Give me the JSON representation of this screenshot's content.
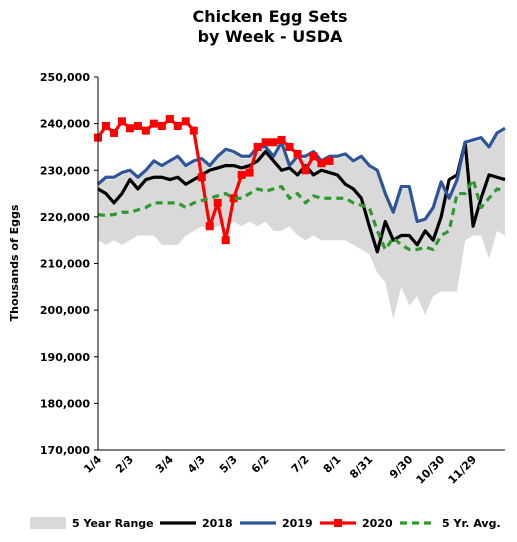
{
  "chart_data": {
    "type": "line",
    "title": "Chicken Egg Sets",
    "subtitle": "by Week - USDA",
    "y_label": "Thousands of Eggs",
    "categories": [
      "1/4",
      null,
      null,
      null,
      "2/3",
      null,
      null,
      null,
      null,
      "3/4",
      null,
      null,
      null,
      "4/3",
      null,
      null,
      null,
      "5/3",
      null,
      null,
      null,
      "6/2",
      null,
      null,
      null,
      null,
      "7/2",
      null,
      null,
      null,
      "8/1",
      null,
      null,
      null,
      "8/31",
      null,
      null,
      null,
      null,
      "9/30",
      null,
      null,
      null,
      "10/30",
      null,
      null,
      null,
      "11/29",
      null,
      null,
      null,
      null
    ],
    "ylim": [
      170000,
      250000
    ],
    "yticks": [
      {
        "value": 170000,
        "label": "170,000"
      },
      {
        "value": 180000,
        "label": "180,000"
      },
      {
        "value": 190000,
        "label": "190,000"
      },
      {
        "value": 200000,
        "label": "200,000"
      },
      {
        "value": 210000,
        "label": "210,000"
      },
      {
        "value": 220000,
        "label": "220,000"
      },
      {
        "value": 230000,
        "label": "230,000"
      },
      {
        "value": 240000,
        "label": "240,000"
      },
      {
        "value": 250000,
        "label": "250,000"
      }
    ],
    "series": [
      {
        "name": "5 Year Range",
        "kind": "range",
        "color": "#d9d9d9",
        "low": [
          215000,
          214000,
          215000,
          214000,
          215000,
          216000,
          216000,
          216000,
          214000,
          214000,
          214000,
          216000,
          217000,
          218000,
          217000,
          218000,
          218000,
          219000,
          218000,
          219000,
          218000,
          219000,
          217000,
          217000,
          218000,
          216000,
          215000,
          216000,
          215000,
          215000,
          215000,
          215000,
          214000,
          213000,
          212000,
          208000,
          206000,
          198000,
          205000,
          201000,
          203000,
          199000,
          203000,
          204000,
          204000,
          204000,
          215000,
          216000,
          216000,
          211000,
          217000,
          216000
        ],
        "high": [
          226500,
          228000,
          228000,
          229000,
          229500,
          228000,
          229500,
          231500,
          230500,
          231500,
          232500,
          230500,
          231500,
          232000,
          230500,
          232500,
          234000,
          233500,
          232500,
          232500,
          234500,
          234500,
          232500,
          235500,
          230500,
          232500,
          232500,
          233500,
          231500,
          232500,
          232500,
          233000,
          231500,
          232500,
          230500,
          229500,
          224500,
          220500,
          226000,
          226000,
          218500,
          219000,
          221500,
          227000,
          223500,
          227500,
          235500,
          236000,
          236500,
          234500,
          237500,
          238500
        ]
      },
      {
        "name": "2018",
        "color": "#000000",
        "dash": false,
        "markers": false,
        "values": [
          226000,
          225000,
          223000,
          225000,
          228000,
          226000,
          228000,
          228500,
          228500,
          228000,
          228500,
          227000,
          228000,
          229000,
          230000,
          230500,
          231000,
          231000,
          230500,
          231000,
          232000,
          234000,
          232000,
          230000,
          230500,
          229000,
          231000,
          229000,
          230000,
          229500,
          229000,
          227000,
          226000,
          224000,
          218000,
          212500,
          219000,
          215000,
          216000,
          216000,
          214000,
          217000,
          215000,
          220000,
          228000,
          229000,
          236000,
          218000,
          224000,
          229000,
          228500,
          228000
        ]
      },
      {
        "name": "2019",
        "color": "#2e5597",
        "dash": false,
        "markers": false,
        "values": [
          227000,
          228500,
          228500,
          229500,
          230000,
          228500,
          230000,
          232000,
          231000,
          232000,
          233000,
          231000,
          232000,
          232500,
          231000,
          233000,
          234500,
          234000,
          233000,
          233000,
          235000,
          235000,
          233000,
          236000,
          231000,
          233000,
          233000,
          234000,
          232000,
          233000,
          233000,
          233500,
          232000,
          233000,
          231000,
          230000,
          225000,
          221000,
          226500,
          226500,
          219000,
          219500,
          222000,
          227500,
          224000,
          228000,
          236000,
          236500,
          237000,
          235000,
          238000,
          239000
        ]
      },
      {
        "name": "2020",
        "color": "#ff0000",
        "dash": false,
        "markers": true,
        "values": [
          237000,
          239500,
          238000,
          240500,
          239000,
          239500,
          238500,
          240000,
          239500,
          241000,
          239500,
          240500,
          238500,
          228500,
          218000,
          223000,
          215000,
          224000,
          229000,
          229500,
          235000,
          236000,
          236000,
          236500,
          235000,
          233500,
          230000,
          233000,
          231500,
          232000,
          null,
          null,
          null,
          null,
          null,
          null,
          null,
          null,
          null,
          null,
          null,
          null,
          null,
          null,
          null,
          null,
          null,
          null,
          null,
          null,
          null,
          null
        ]
      },
      {
        "name": "5 Yr. Avg.",
        "color": "#2e9a2e",
        "dash": true,
        "markers": false,
        "values": [
          220500,
          220300,
          220500,
          221000,
          221000,
          221500,
          222000,
          223000,
          223000,
          223000,
          223000,
          222000,
          223000,
          223500,
          224000,
          224500,
          225000,
          224000,
          224000,
          225000,
          226000,
          225500,
          226000,
          226500,
          224000,
          225000,
          223000,
          224500,
          224000,
          224000,
          224000,
          224000,
          223000,
          222500,
          222000,
          217000,
          213000,
          215500,
          214000,
          213000,
          213000,
          213500,
          213000,
          216000,
          217000,
          225000,
          225000,
          228000,
          222000,
          224000,
          226000,
          225500
        ]
      }
    ]
  }
}
